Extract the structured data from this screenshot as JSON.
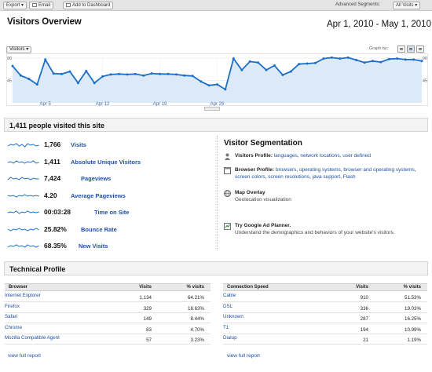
{
  "toolbar": {
    "export": "Export",
    "email": "Email",
    "add_dashboard": "Add to Dashboard",
    "advanced_segments_label": "Advanced Segments:",
    "segment_value": "All Visits"
  },
  "header": {
    "title": "Visitors Overview",
    "date_range": "Apr 1, 2010 - May 1, 2010"
  },
  "graph": {
    "metric_selector": "Visitors",
    "graph_by_label": "Graph by:",
    "y_axis_labels": [
      "90",
      "45",
      "90",
      "45"
    ],
    "x_axis_labels": [
      "Apr 5",
      "Apr 12",
      "Apr 19",
      "Apr 26"
    ]
  },
  "chart_data": {
    "type": "area",
    "series": [
      {
        "name": "Visitors",
        "values": [
          74,
          55,
          48,
          37,
          87,
          59,
          58,
          63,
          40,
          64,
          40,
          53,
          57,
          58,
          57,
          58,
          55,
          59,
          58,
          58,
          57,
          55,
          54,
          43,
          35,
          37,
          27,
          89,
          66,
          83,
          81,
          66,
          75,
          56,
          63,
          78,
          79,
          80,
          89,
          91,
          89,
          91,
          86,
          81,
          84,
          82,
          88,
          89,
          87,
          87,
          84
        ]
      }
    ],
    "ylim": [
      0,
      90
    ],
    "y_ticks": [
      45,
      90
    ],
    "color": "#1c6fc6",
    "fill": "#dceaf8",
    "x_tick_labels": [
      "Apr 5",
      "Apr 12",
      "Apr 19",
      "Apr 26"
    ]
  },
  "summary": {
    "headline": "1,411 people visited this site"
  },
  "metrics": [
    {
      "value": "1,766",
      "label": "Visits"
    },
    {
      "value": "1,411",
      "label": "Absolute Unique Visitors"
    },
    {
      "value": "7,424",
      "label": "Pageviews"
    },
    {
      "value": "4.20",
      "label": "Average Pageviews"
    },
    {
      "value": "00:03:28",
      "label": "Time on Site"
    },
    {
      "value": "25.82%",
      "label": "Bounce Rate"
    },
    {
      "value": "68.35%",
      "label": "New Visits"
    }
  ],
  "segmentation": {
    "title": "Visitor Segmentation",
    "visitors_profile_label": "Visitors Profile:",
    "visitors_profile_links": [
      "languages",
      "network locations",
      "user defined"
    ],
    "browser_profile_label": "Browser Profile:",
    "browser_profile_links": [
      "browsers",
      "operating systems",
      "browser and operating systems",
      "screen colors",
      "screen resolutions",
      "java support",
      "Flash"
    ],
    "map_overlay": "Map Overlay",
    "map_overlay_desc": "Geolocation visualization",
    "ad_planner": "Try Google Ad Planner.",
    "ad_planner_desc": "Understand the demographics and behaviors of your website's visitors."
  },
  "technical": {
    "title": "Technical Profile"
  },
  "browser_table": {
    "headers": [
      "Browser",
      "Visits",
      "% visits"
    ],
    "rows": [
      [
        "Internet Explorer",
        "1,134",
        "64.21%"
      ],
      [
        "Firefox",
        "329",
        "18.63%"
      ],
      [
        "Safari",
        "149",
        "8.44%"
      ],
      [
        "Chrome",
        "83",
        "4.70%"
      ],
      [
        "Mozilla Compatible Agent",
        "57",
        "3.23%"
      ]
    ],
    "full_report": "view full report"
  },
  "connection_table": {
    "headers": [
      "Connection Speed",
      "Visits",
      "% visits"
    ],
    "rows": [
      [
        "Cable",
        "910",
        "51.53%"
      ],
      [
        "DSL",
        "336",
        "19.03%"
      ],
      [
        "Unknown",
        "287",
        "16.25%"
      ],
      [
        "T1",
        "194",
        "10.99%"
      ],
      [
        "Dialup",
        "21",
        "1.19%"
      ]
    ],
    "full_report": "view full report"
  }
}
